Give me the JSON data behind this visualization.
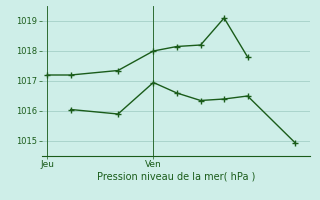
{
  "xlabel_bottom": "Pression niveau de la mer( hPa )",
  "background_color": "#ceeee8",
  "grid_color": "#aad4cc",
  "line_color": "#1a5c1a",
  "ylim": [
    1014.5,
    1019.5
  ],
  "yticks": [
    1015,
    1016,
    1017,
    1018,
    1019
  ],
  "x_tick_labels": [
    "Jeu",
    "Ven"
  ],
  "x_tick_positions": [
    0.0,
    0.375
  ],
  "line1_x": [
    0.0,
    0.083,
    0.25,
    0.375,
    0.458,
    0.542,
    0.625,
    0.708
  ],
  "line1_y": [
    1017.2,
    1017.2,
    1017.35,
    1018.0,
    1018.15,
    1018.2,
    1019.1,
    1017.8
  ],
  "line2_x": [
    0.083,
    0.25,
    0.375,
    0.458,
    0.542,
    0.625,
    0.708,
    0.875
  ],
  "line2_y": [
    1016.05,
    1015.9,
    1016.95,
    1016.6,
    1016.35,
    1016.4,
    1016.5,
    1014.95
  ],
  "xlim": [
    -0.02,
    0.93
  ]
}
